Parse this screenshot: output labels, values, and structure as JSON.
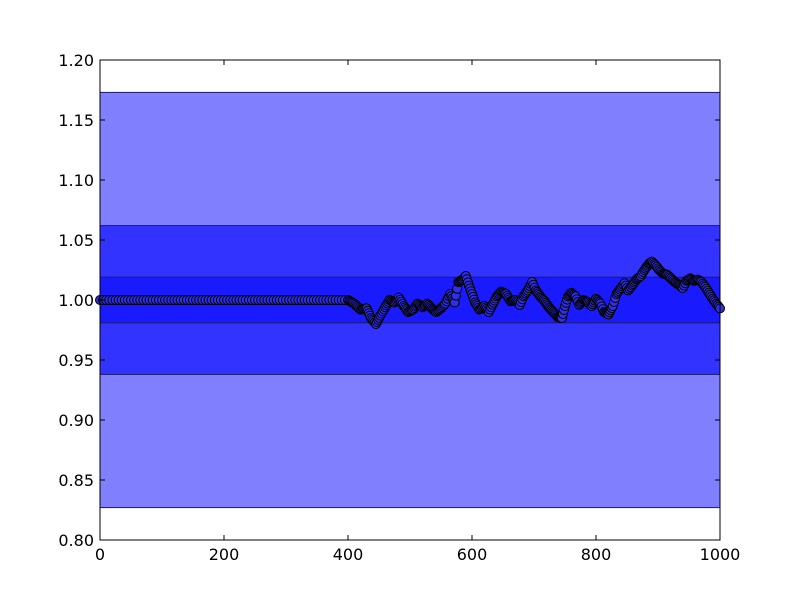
{
  "chart_data": {
    "type": "scatter",
    "title": "",
    "xlabel": "",
    "ylabel": "",
    "xlim": [
      0,
      1000
    ],
    "ylim": [
      0.8,
      1.2
    ],
    "grid": false,
    "x_ticks": [
      {
        "value": 0,
        "label": "0"
      },
      {
        "value": 200,
        "label": "200"
      },
      {
        "value": 400,
        "label": "400"
      },
      {
        "value": 600,
        "label": "600"
      },
      {
        "value": 800,
        "label": "800"
      },
      {
        "value": 1000,
        "label": "1000"
      }
    ],
    "y_ticks": [
      {
        "value": 0.8,
        "label": "0.80"
      },
      {
        "value": 0.85,
        "label": "0.85"
      },
      {
        "value": 0.9,
        "label": "0.90"
      },
      {
        "value": 0.95,
        "label": "0.95"
      },
      {
        "value": 1.0,
        "label": "1.00"
      },
      {
        "value": 1.05,
        "label": "1.05"
      },
      {
        "value": 1.1,
        "label": "1.10"
      },
      {
        "value": 1.15,
        "label": "1.15"
      },
      {
        "value": 1.2,
        "label": "1.20"
      }
    ],
    "bands": [
      {
        "ymin": 0.827,
        "ymax": 1.173,
        "color": "#8080ff"
      },
      {
        "ymin": 0.938,
        "ymax": 1.062,
        "color": "#3333ff"
      },
      {
        "ymin": 0.981,
        "ymax": 1.019,
        "color": "#1a1aff"
      }
    ],
    "series": [
      {
        "marker_color": "#2f2fe6",
        "flat_segment": {
          "x_start": 0,
          "x_end": 395,
          "y": 1.0
        },
        "points": [
          [
            400,
            1.0
          ],
          [
            410,
            0.997
          ],
          [
            420,
            0.992
          ],
          [
            430,
            0.993
          ],
          [
            437,
            0.985
          ],
          [
            445,
            0.98
          ],
          [
            452,
            0.987
          ],
          [
            460,
            0.994
          ],
          [
            467,
            1.0
          ],
          [
            475,
            0.998
          ],
          [
            482,
            1.002
          ],
          [
            490,
            0.995
          ],
          [
            497,
            0.99
          ],
          [
            505,
            0.992
          ],
          [
            512,
            0.997
          ],
          [
            520,
            0.994
          ],
          [
            528,
            0.997
          ],
          [
            535,
            0.993
          ],
          [
            542,
            0.99
          ],
          [
            550,
            0.993
          ],
          [
            557,
            0.997
          ],
          [
            565,
            1.005
          ],
          [
            572,
            0.998
          ],
          [
            578,
            1.015
          ],
          [
            585,
            1.017
          ],
          [
            590,
            1.02
          ],
          [
            595,
            1.012
          ],
          [
            600,
            1.005
          ],
          [
            605,
            0.998
          ],
          [
            612,
            0.992
          ],
          [
            620,
            0.995
          ],
          [
            627,
            0.99
          ],
          [
            633,
            0.996
          ],
          [
            640,
            1.003
          ],
          [
            647,
            1.007
          ],
          [
            655,
            1.005
          ],
          [
            662,
            0.999
          ],
          [
            670,
            1.0
          ],
          [
            677,
            0.996
          ],
          [
            683,
            1.003
          ],
          [
            690,
            1.008
          ],
          [
            697,
            1.015
          ],
          [
            703,
            1.008
          ],
          [
            710,
            1.003
          ],
          [
            717,
            0.999
          ],
          [
            724,
            0.994
          ],
          [
            731,
            0.99
          ],
          [
            738,
            0.986
          ],
          [
            745,
            0.985
          ],
          [
            750,
            0.995
          ],
          [
            755,
            1.003
          ],
          [
            760,
            1.006
          ],
          [
            767,
            1.003
          ],
          [
            773,
            0.996
          ],
          [
            780,
            1.0
          ],
          [
            787,
            0.998
          ],
          [
            793,
            0.995
          ],
          [
            800,
            1.001
          ],
          [
            807,
            0.997
          ],
          [
            813,
            0.99
          ],
          [
            820,
            0.988
          ],
          [
            827,
            0.995
          ],
          [
            833,
            1.005
          ],
          [
            840,
            1.01
          ],
          [
            846,
            1.014
          ],
          [
            852,
            1.008
          ],
          [
            858,
            1.012
          ],
          [
            865,
            1.017
          ],
          [
            872,
            1.02
          ],
          [
            878,
            1.025
          ],
          [
            885,
            1.03
          ],
          [
            890,
            1.032
          ],
          [
            896,
            1.029
          ],
          [
            902,
            1.025
          ],
          [
            908,
            1.022
          ],
          [
            915,
            1.021
          ],
          [
            921,
            1.018
          ],
          [
            927,
            1.015
          ],
          [
            933,
            1.013
          ],
          [
            940,
            1.01
          ],
          [
            946,
            1.016
          ],
          [
            952,
            1.018
          ],
          [
            958,
            1.016
          ],
          [
            964,
            1.017
          ],
          [
            970,
            1.015
          ],
          [
            976,
            1.011
          ],
          [
            982,
            1.006
          ],
          [
            988,
            1.001
          ],
          [
            994,
            0.997
          ],
          [
            1000,
            0.993
          ]
        ]
      }
    ]
  }
}
